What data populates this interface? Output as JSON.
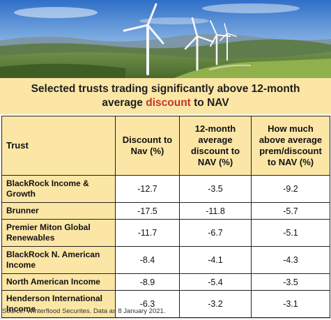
{
  "title": {
    "line1": "Selected trusts trading significantly above 12-month",
    "line2_pre": "average ",
    "line2_highlight": "discount",
    "line2_post": " to NAV"
  },
  "colors": {
    "header_fill": "#fbe6a6",
    "highlight": "#c0392b"
  },
  "table": {
    "headers": [
      "Trust",
      "Discount to Nav (%)",
      "12-month average discount to NAV (%)",
      "How much above average prem/discount to NAV (%)"
    ],
    "rows": [
      {
        "trust": "BlackRock Income & Growth",
        "discount": "-12.7",
        "avg": "-3.5",
        "above": "-9.2"
      },
      {
        "trust": "Brunner",
        "discount": "-17.5",
        "avg": "-11.8",
        "above": "-5.7"
      },
      {
        "trust": "Premier Miton Global Renewables",
        "discount": "-11.7",
        "avg": "-6.7",
        "above": "-5.1"
      },
      {
        "trust": "BlackRock N. American Income",
        "discount": "-8.4",
        "avg": "-4.1",
        "above": "-4.3"
      },
      {
        "trust": "North American Income",
        "discount": "-8.9",
        "avg": "-5.4",
        "above": "-3.5"
      },
      {
        "trust": "Henderson International Income",
        "discount": "-6.3",
        "avg": "-3.2",
        "above": "-3.1"
      }
    ]
  },
  "source": "Source: Winterflood Securites. Data as 8 January 2021."
}
